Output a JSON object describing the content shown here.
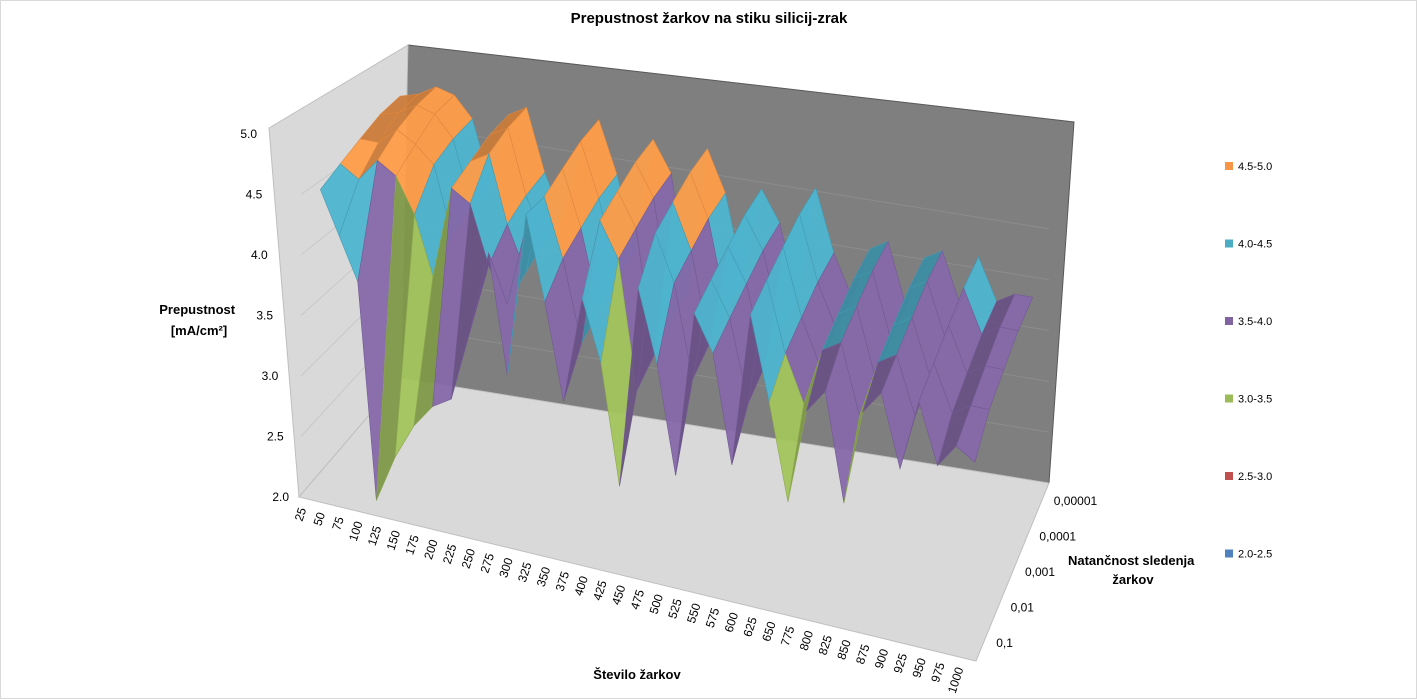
{
  "chart_data": {
    "type": "surface",
    "title": "Prepustnost žarkov na stiku silicij-zrak",
    "zlabel": [
      "Prepustnost",
      "[mA/cm²]"
    ],
    "xlabel": "Število žarkov",
    "ylabel": [
      "Natančnost sledenja",
      "žarkov"
    ],
    "zlim": [
      2.0,
      5.0
    ],
    "z_ticks": [
      "2.0",
      "2.5",
      "3.0",
      "3.5",
      "4.0",
      "4.5",
      "5.0"
    ],
    "x_categories": [
      "25",
      "50",
      "75",
      "100",
      "125",
      "150",
      "175",
      "200",
      "225",
      "250",
      "275",
      "300",
      "325",
      "350",
      "375",
      "400",
      "425",
      "450",
      "475",
      "500",
      "525",
      "550",
      "575",
      "600",
      "625",
      "650",
      "775",
      "800",
      "825",
      "850",
      "875",
      "900",
      "925",
      "950",
      "975",
      "1000"
    ],
    "y_categories": [
      "0,1",
      "0,01",
      "0,001",
      "0,0001",
      "0,00001"
    ],
    "legend": {
      "placement": "right",
      "bands": [
        {
          "label": "4.5-5.0",
          "color": "#F79646",
          "min": 4.5,
          "max": 5.0
        },
        {
          "label": "4.0-4.5",
          "color": "#4BACC6",
          "min": 4.0,
          "max": 4.5
        },
        {
          "label": "3.5-4.0",
          "color": "#8064A2",
          "min": 3.5,
          "max": 4.0
        },
        {
          "label": "3.0-3.5",
          "color": "#9BBB59",
          "min": 3.0,
          "max": 3.5
        },
        {
          "label": "2.5-3.0",
          "color": "#C0504D",
          "min": 2.5,
          "max": 3.0
        },
        {
          "label": "2.0-2.5",
          "color": "#4F81BD",
          "min": 2.0,
          "max": 2.5
        }
      ]
    },
    "values": {
      "0,1": [
        4.5,
        4.15,
        3.8,
        2.0,
        2.4,
        2.7,
        2.9,
        3.0,
        3.6,
        4.3,
        3.3,
        4.7,
        4.0,
        3.2,
        4.1,
        3.6,
        2.6,
        4.3,
        3.7,
        2.8,
        4.2,
        3.9,
        3.0,
        4.3,
        3.6,
        2.8,
        3.6,
        3.8,
        2.9,
        3.7,
        3.9,
        3.3,
        3.9,
        3.4,
        3.6,
        3.5
      ],
      "0,01": [
        4.6,
        4.5,
        4.7,
        4.6,
        4.3,
        3.8,
        4.6,
        4.5,
        4.0,
        3.7,
        4.4,
        4.7,
        4.2,
        3.5,
        4.6,
        4.3,
        3.2,
        4.6,
        4.2,
        3.4,
        4.3,
        4.0,
        3.3,
        4.4,
        3.8,
        3.4,
        3.9,
        4.0,
        3.4,
        3.9,
        4.0,
        3.5,
        4.0,
        3.6,
        3.7,
        3.7
      ],
      "0,001": [
        4.7,
        4.7,
        4.85,
        4.75,
        4.6,
        4.0,
        4.7,
        4.8,
        4.2,
        3.8,
        4.5,
        4.8,
        4.3,
        3.6,
        4.7,
        4.4,
        3.3,
        4.7,
        4.3,
        3.5,
        4.4,
        4.1,
        3.4,
        4.5,
        3.9,
        3.5,
        4.0,
        4.1,
        3.5,
        4.0,
        4.1,
        3.6,
        4.1,
        3.7,
        3.8,
        3.8
      ],
      "0,0001": [
        4.8,
        4.85,
        4.95,
        4.9,
        4.7,
        4.1,
        4.8,
        4.9,
        4.3,
        3.9,
        4.6,
        4.9,
        4.4,
        3.7,
        4.8,
        4.5,
        3.4,
        4.8,
        4.4,
        3.6,
        4.5,
        4.2,
        3.5,
        4.6,
        4.0,
        3.6,
        4.1,
        4.2,
        3.6,
        4.1,
        4.2,
        3.7,
        4.2,
        3.8,
        3.9,
        3.9
      ],
      "0,00001": [
        4.85,
        4.9,
        5.0,
        4.95,
        4.75,
        4.15,
        4.85,
        4.95,
        4.35,
        3.95,
        4.65,
        4.95,
        4.45,
        3.75,
        4.85,
        4.55,
        3.45,
        4.85,
        4.45,
        3.65,
        4.55,
        4.25,
        3.55,
        4.65,
        4.05,
        3.65,
        4.15,
        4.25,
        3.65,
        4.15,
        4.25,
        3.75,
        4.25,
        3.85,
        3.95,
        3.95
      ]
    }
  }
}
